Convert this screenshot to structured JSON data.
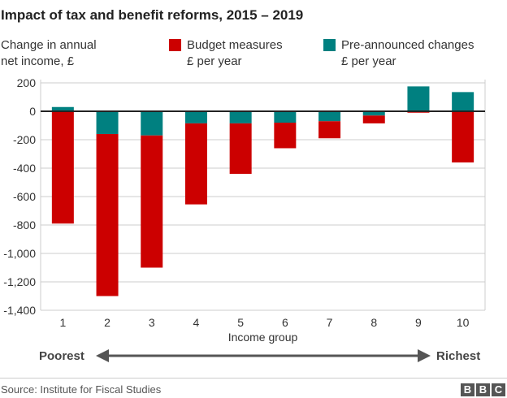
{
  "chart_data": {
    "type": "bar",
    "stacked": true,
    "title": "Impact of tax and benefit reforms, 2015 – 2019",
    "ylabel": "Change in annual net income, £",
    "xlabel": "Income group",
    "categories": [
      "1",
      "2",
      "3",
      "4",
      "5",
      "6",
      "7",
      "8",
      "9",
      "10"
    ],
    "series": [
      {
        "name": "Budget measures £ per year",
        "color": "#cc0000",
        "values": [
          -790,
          -1140,
          -930,
          -570,
          -355,
          -180,
          -120,
          -55,
          -10,
          -360
        ]
      },
      {
        "name": "Pre-announced changes £ per year",
        "color": "#008080",
        "values": [
          30,
          -160,
          -170,
          -85,
          -85,
          -80,
          -70,
          -30,
          175,
          135
        ]
      }
    ],
    "ylim": [
      -1400,
      200
    ],
    "yticks": [
      200,
      0,
      -200,
      -400,
      -600,
      -800,
      -1000,
      -1200,
      -1400
    ],
    "ytick_labels": [
      "200",
      "0",
      "-200",
      "-400",
      "-600",
      "-800",
      "-1,000",
      "-1,200",
      "-1,400"
    ],
    "grid": true,
    "legend": "top"
  },
  "labels": {
    "ylabel_line1": "Change in annual",
    "ylabel_line2": "net income, £",
    "legend_budget_line1": "Budget measures",
    "legend_budget_line2": "£ per year",
    "legend_pre_line1": "Pre-announced changes",
    "legend_pre_line2": "£ per year",
    "poorest": "Poorest",
    "richest": "Richest",
    "source": "Source: Institute for Fiscal Studies",
    "logo": [
      "B",
      "B",
      "C"
    ]
  }
}
